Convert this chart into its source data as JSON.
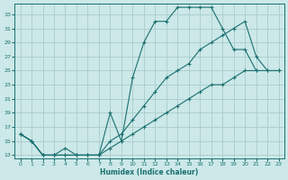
{
  "xlabel": "Humidex (Indice chaleur)",
  "bg_color": "#cce8e8",
  "grid_color": "#aacccc",
  "line_color": "#1a7070",
  "xlim": [
    -0.5,
    23.5
  ],
  "ylim": [
    12.5,
    34.5
  ],
  "yticks": [
    13,
    15,
    17,
    19,
    21,
    23,
    25,
    27,
    29,
    31,
    33
  ],
  "xticks": [
    0,
    1,
    2,
    3,
    4,
    5,
    6,
    7,
    8,
    9,
    10,
    11,
    12,
    13,
    14,
    15,
    16,
    17,
    18,
    19,
    20,
    21,
    22,
    23
  ],
  "line1_x": [
    0,
    1,
    2,
    3,
    4,
    5,
    6,
    7,
    8,
    9,
    10,
    11,
    12,
    13,
    14,
    15,
    16,
    17,
    18,
    19,
    20,
    21
  ],
  "line1_y": [
    16,
    15,
    13,
    13,
    13,
    13,
    13,
    13,
    19,
    15,
    24,
    29,
    32,
    32,
    34,
    34,
    34,
    34,
    31,
    28,
    28,
    25
  ],
  "line2_x": [
    0,
    1,
    2,
    3,
    4,
    5,
    6,
    7,
    8,
    9,
    10,
    11,
    12,
    13,
    14,
    15,
    16,
    17,
    18,
    19,
    20,
    21,
    22,
    23
  ],
  "line2_y": [
    16,
    15,
    13,
    13,
    14,
    13,
    13,
    13,
    15,
    16,
    18,
    20,
    22,
    24,
    25,
    26,
    28,
    29,
    30,
    31,
    32,
    27,
    25,
    25
  ],
  "line3_x": [
    0,
    1,
    2,
    3,
    4,
    5,
    6,
    7,
    8,
    9,
    10,
    11,
    12,
    13,
    14,
    15,
    16,
    17,
    18,
    19,
    20,
    21,
    22,
    23
  ],
  "line3_y": [
    16,
    15,
    13,
    13,
    13,
    13,
    13,
    13,
    14,
    15,
    16,
    17,
    18,
    19,
    20,
    21,
    22,
    23,
    23,
    24,
    25,
    25,
    25,
    25
  ]
}
